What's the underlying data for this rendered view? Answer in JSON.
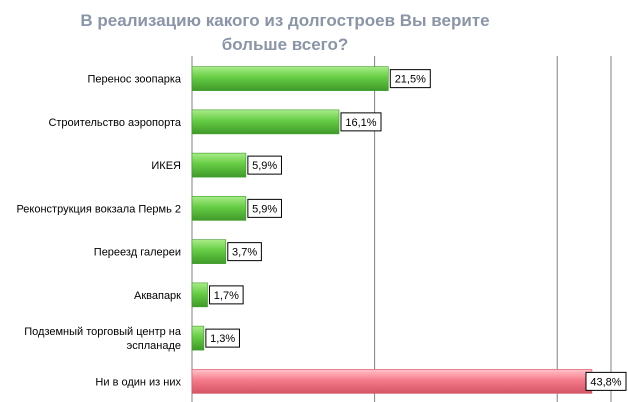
{
  "chart_data": {
    "type": "bar",
    "orientation": "horizontal",
    "title": "В реализацию какого из долгостроев Вы верите больше всего?",
    "title_lines": [
      "В реализацию какого из долгостроев Вы верите",
      "больше всего?"
    ],
    "categories": [
      "Перенос зоопарка",
      "Строительство аэропорта",
      "ИКЕЯ",
      "Реконструкция вокзала Пермь 2",
      "Переезд галереи",
      "Аквапарк",
      "Подземный торговый центр на эспланаде",
      "Ни в один из них"
    ],
    "category_lines": [
      [
        "Перенос зоопарка"
      ],
      [
        "Строительство аэропорта"
      ],
      [
        "ИКЕЯ"
      ],
      [
        "Реконструкция вокзала Пермь 2"
      ],
      [
        "Переезд галереи"
      ],
      [
        "Аквапарк"
      ],
      [
        "Подземный торговый центр на",
        "эспланаде"
      ],
      [
        "Ни в один из них"
      ]
    ],
    "values": [
      21.5,
      16.1,
      5.9,
      5.9,
      3.7,
      1.7,
      1.3,
      43.8
    ],
    "value_labels": [
      "21,5%",
      "16,1%",
      "5,9%",
      "5,9%",
      "3,7%",
      "1,7%",
      "1,3%",
      "43,8%"
    ],
    "xlim": [
      0,
      46
    ],
    "gridlines_at": [
      0,
      20,
      40
    ],
    "grid": true,
    "legend": "none",
    "colors": {
      "bar": "#66cc44",
      "bar_light": "#a8ec88",
      "bar_dark": "#3f9a2a",
      "highlight_bar": "#f47a8a",
      "highlight_light": "#ffc4cc",
      "highlight_dark": "#d45565",
      "grid": "#808080",
      "title": "#8a95a8"
    },
    "highlight_index": 7
  }
}
